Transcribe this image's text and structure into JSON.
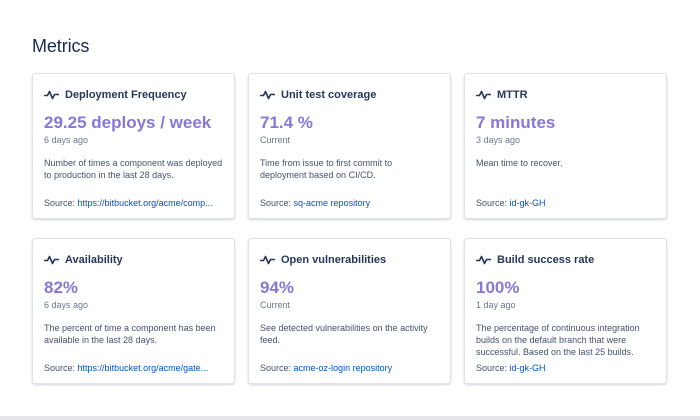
{
  "page": {
    "title": "Metrics"
  },
  "colors": {
    "value": "#8777d9",
    "link": "#0052cc",
    "title": "#253858",
    "muted": "#6b778c"
  },
  "cards": [
    {
      "icon": "activity-icon",
      "title": "Deployment Frequency",
      "value": "29.25 deploys / week",
      "sub": "6 days ago",
      "desc": "Number of times a component was deployed to production in the last 28 days.",
      "source_label": "Source:",
      "source_link": "https://bitbucket.org/acme/comp..."
    },
    {
      "icon": "activity-icon",
      "title": "Unit test coverage",
      "value": "71.4 %",
      "sub": "Current",
      "desc": "Time from issue to first commit to deployment based on CI/CD.",
      "source_label": "Source:",
      "source_link": "sq-acme repository"
    },
    {
      "icon": "activity-icon",
      "title": "MTTR",
      "value": "7 minutes",
      "sub": "3 days ago",
      "desc": "Mean time to recover.",
      "source_label": "Source:",
      "source_link": "id-gk-GH"
    },
    {
      "icon": "activity-icon",
      "title": "Availability",
      "value": "82%",
      "sub": "6 days ago",
      "desc": "The percent of time a component has been available in the last 28 days.",
      "source_label": "Source:",
      "source_link": "https://bitbucket.org/acme/gate..."
    },
    {
      "icon": "activity-icon",
      "title": "Open vulnerabilities",
      "value": "94%",
      "sub": "Current",
      "desc": "See detected vulnerabilities on the activity feed.",
      "source_label": "Source:",
      "source_link": "acme-oz-login repository"
    },
    {
      "icon": "activity-icon",
      "title": "Build success rate",
      "value": "100%",
      "sub": "1 day ago",
      "desc": "The percentage of continuous integration builds on the default branch that were successful. Based on the last 25 builds.",
      "source_label": "Source:",
      "source_link": "id-gk-GH"
    }
  ]
}
